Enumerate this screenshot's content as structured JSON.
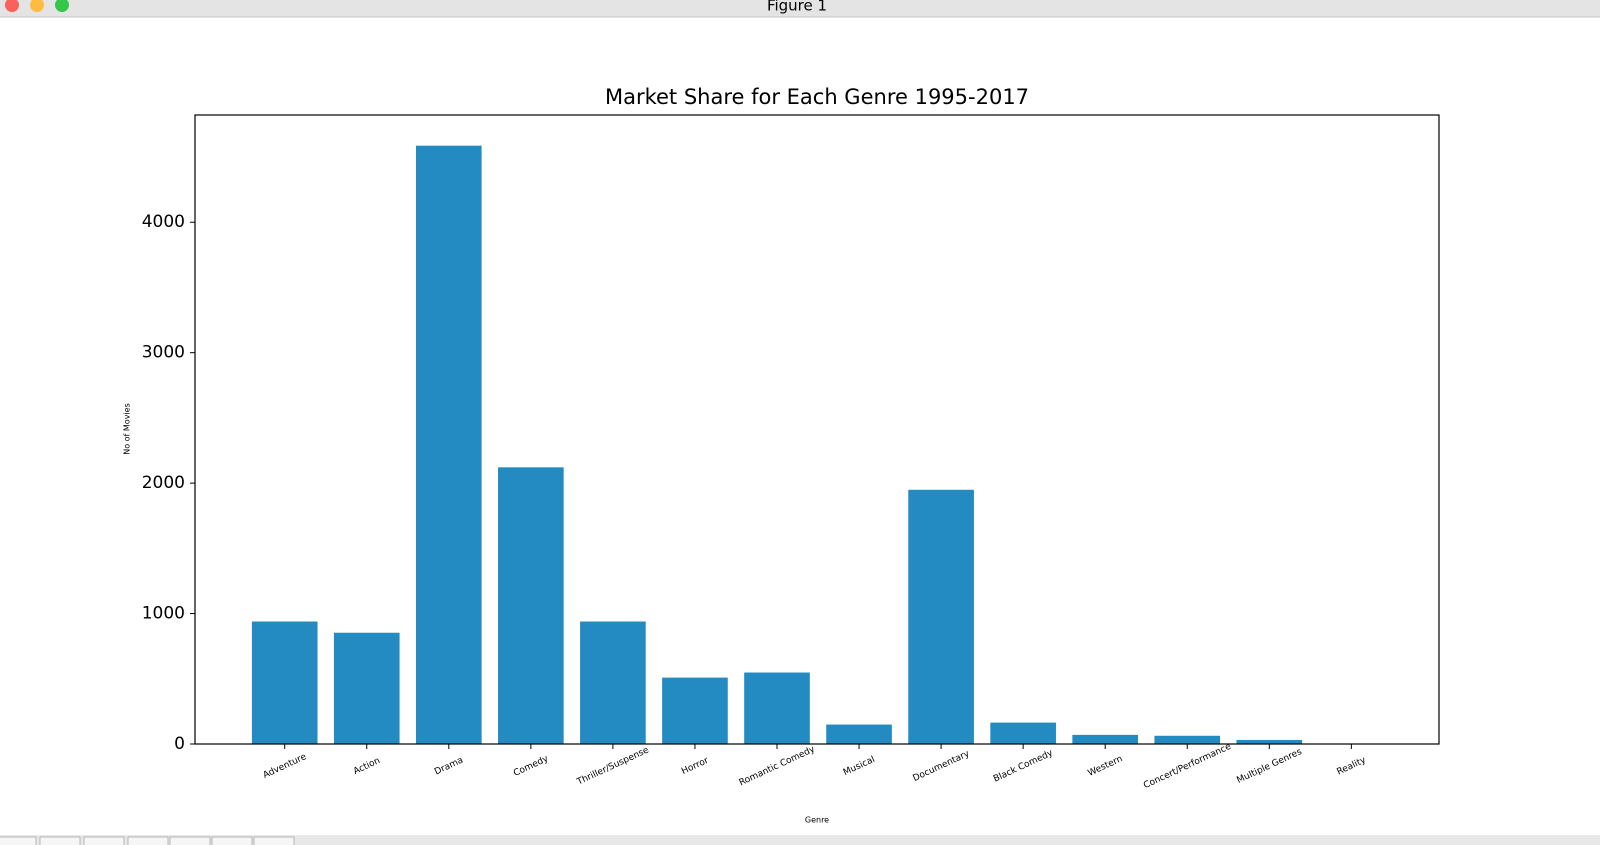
{
  "window": {
    "title": "Figure 1"
  },
  "chart_data": {
    "type": "bar",
    "title": "Market Share for Each Genre 1995-2017",
    "x_label": "Genre",
    "y_label": "No of Movies",
    "categories": [
      "Adventure",
      "Action",
      "Drama",
      "Comedy",
      "Thriller/Suspense",
      "Horror",
      "Romantic Comedy",
      "Musical",
      "Documentary",
      "Black Comedy",
      "Western",
      "Concert/Performance",
      "Multiple Genres",
      "Reality"
    ],
    "values": [
      939,
      853,
      4587,
      2121,
      939,
      509,
      548,
      149,
      1949,
      164,
      70,
      63,
      31,
      1
    ],
    "color": "#238bc2",
    "ylim": [
      0,
      4822
    ],
    "yticks": [
      0,
      1000,
      2000,
      3000,
      4000
    ],
    "grid": false
  }
}
